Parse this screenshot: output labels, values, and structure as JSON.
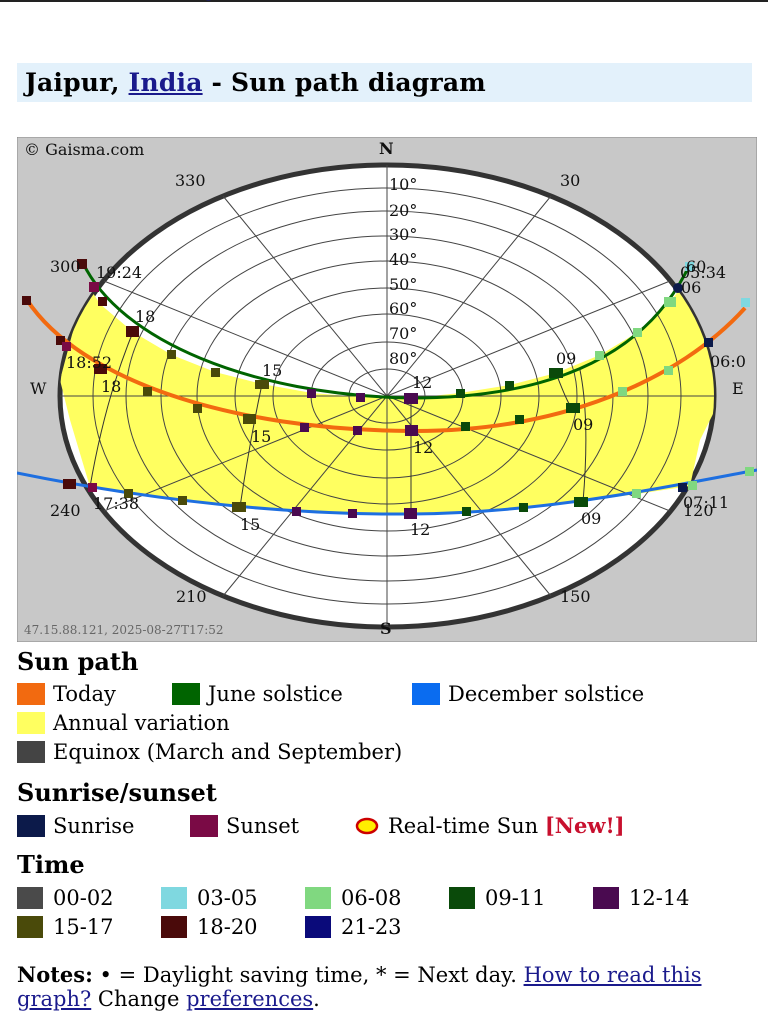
{
  "page": {
    "title_city": "Jaipur, ",
    "title_country": "India",
    "title_suffix": " - Sun path diagram"
  },
  "diagram": {
    "copyright": "© Gaisma.com",
    "footer_ip": "47.15.88.121, 2025-08-27T17:52",
    "compass": {
      "n": "N",
      "s": "S",
      "e": "E",
      "w": "W"
    },
    "azimuths": [
      "330",
      "30",
      "300",
      "60",
      "240",
      "120",
      "210",
      "150"
    ],
    "altitudes": [
      "10°",
      "20°",
      "30°",
      "40°",
      "50°",
      "60°",
      "70°",
      "80°"
    ],
    "june_labels": {
      "sunrise": "05:34",
      "sunset": "19:24",
      "h09": "09",
      "h12": "12",
      "h15": "15",
      "h18": "18",
      "h06": "06"
    },
    "today_labels": {
      "sunrise": "06:0",
      "sunset": "18:52",
      "h09": "09",
      "h12": "12",
      "h15": "15",
      "h18": "18"
    },
    "december_labels": {
      "sunrise": "07:11",
      "sunset": "17:38",
      "h09": "09",
      "h12": "12",
      "h15": "15"
    },
    "colors": {
      "today": "#f26a10",
      "june": "#006400",
      "december": "#1e6fe0",
      "annual": "#ffff60",
      "equinox": "#444444",
      "background": "#c8c8c8"
    }
  },
  "legend": {
    "sun_path": {
      "heading": "Sun path",
      "items": [
        {
          "label": "Today",
          "color": "#f26a10"
        },
        {
          "label": "June solstice",
          "color": "#006400"
        },
        {
          "label": "December solstice",
          "color": "#0a6cf0"
        },
        {
          "label": "Annual variation",
          "color": "#ffff60"
        },
        {
          "label": "Equinox (March and September)",
          "color": "#444444"
        }
      ]
    },
    "sunrise_sunset": {
      "heading": "Sunrise/sunset",
      "sunrise": {
        "label": "Sunrise",
        "color": "#0c1a4a"
      },
      "sunset": {
        "label": "Sunset",
        "color": "#7a0a45"
      },
      "realtime": {
        "label": "Real-time Sun",
        "badge": "[New!]",
        "color": "#ffee00",
        "ring": "#cc0000"
      }
    },
    "time": {
      "heading": "Time",
      "items": [
        {
          "label": "00-02",
          "color": "#4a4a4a"
        },
        {
          "label": "03-05",
          "color": "#7fd8e0"
        },
        {
          "label": "06-08",
          "color": "#80d880"
        },
        {
          "label": "09-11",
          "color": "#0a4a0a"
        },
        {
          "label": "12-14",
          "color": "#4a0a50"
        },
        {
          "label": "15-17",
          "color": "#4a4a0a"
        },
        {
          "label": "18-20",
          "color": "#4a0a0a"
        },
        {
          "label": "21-23",
          "color": "#0a0a7a"
        }
      ]
    }
  },
  "notes": {
    "prefix": "Notes:",
    "text1": " • = Daylight saving time, * = Next day. ",
    "link1": "How to read this graph?",
    "text2": " Change ",
    "link2": "preferences",
    "text3": "."
  }
}
